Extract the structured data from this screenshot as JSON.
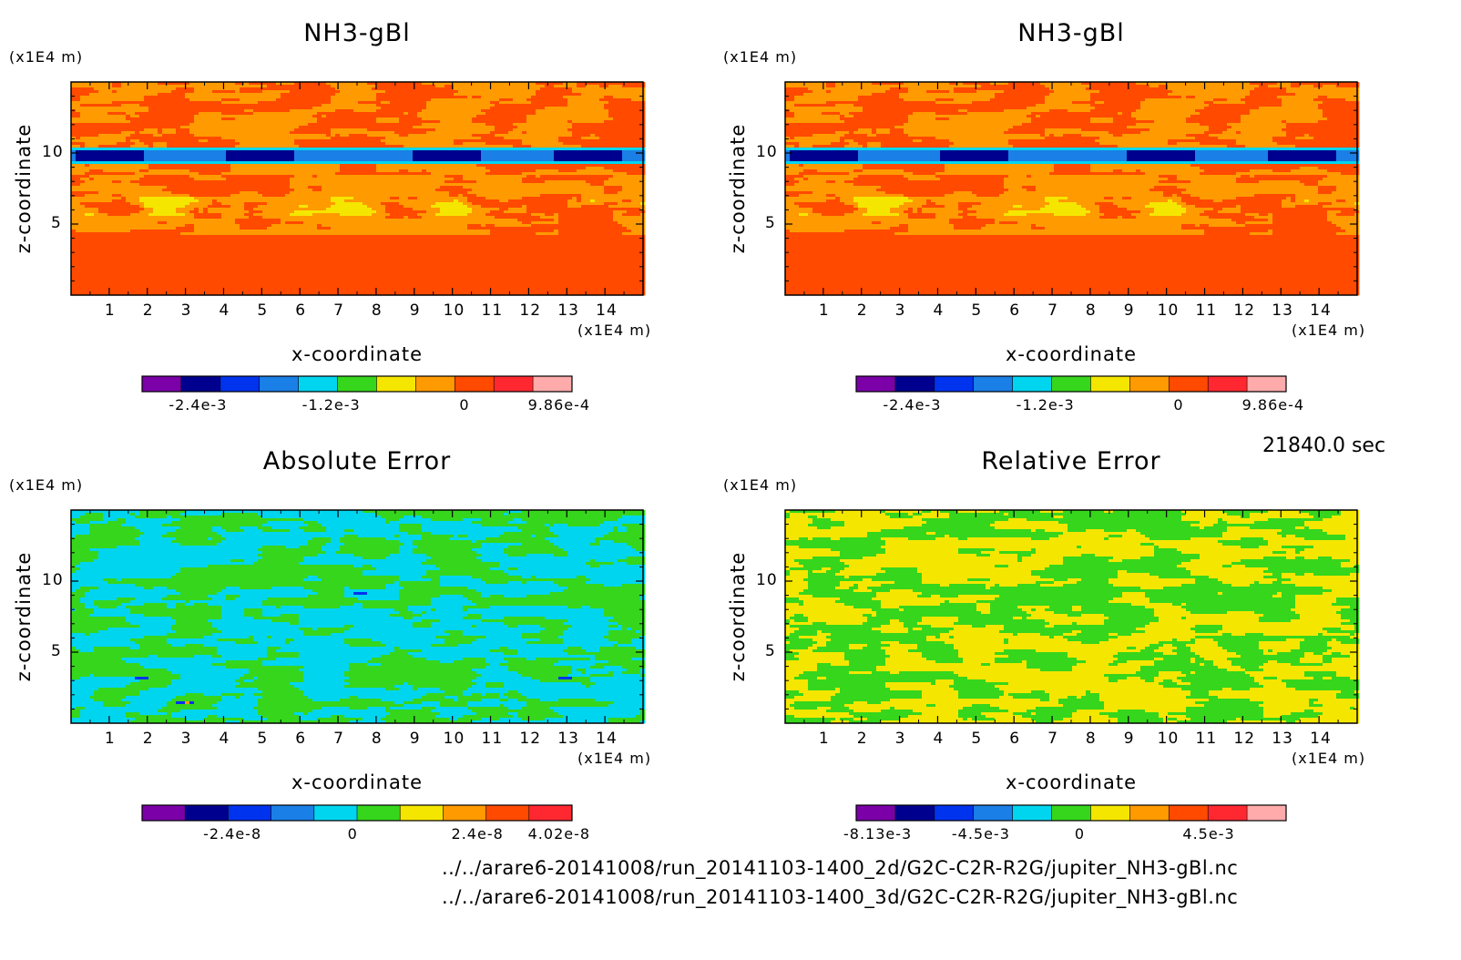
{
  "time_label": "21840.0 sec",
  "file_paths": [
    "../../arare6-20141008/run_20141103-1400_2d/G2C-C2R-R2G/jupiter_NH3-gBl.nc",
    "../../arare6-20141008/run_20141103-1400_3d/G2C-C2R-R2G/jupiter_NH3-gBl.nc"
  ],
  "chart_data": [
    {
      "type": "heatmap",
      "title": "NH3-gBl",
      "xlabel": "x-coordinate",
      "ylabel": "z-coordinate",
      "x_unit": "(x1E4 m)",
      "z_unit": "(x1E4 m)",
      "x_ticks": [
        "1",
        "2",
        "3",
        "4",
        "5",
        "6",
        "7",
        "8",
        "9",
        "10",
        "11",
        "12",
        "13",
        "14"
      ],
      "z_ticks": [
        "5",
        "10"
      ],
      "xlim": [
        0,
        15
      ],
      "zlim": [
        0,
        15
      ],
      "colorbar": {
        "colors": [
          "#7b00a8",
          "#00008e",
          "#0033ee",
          "#1a7fe6",
          "#00d5ef",
          "#36d61c",
          "#f5e600",
          "#ff9a00",
          "#ff4a00",
          "#ff2830",
          "#ffabab"
        ],
        "tick_labels": [
          "-2.4e-3",
          "-1.2e-3",
          "0",
          "9.86e-4"
        ]
      }
    },
    {
      "type": "heatmap",
      "title": "NH3-gBl",
      "xlabel": "x-coordinate",
      "ylabel": "z-coordinate",
      "x_unit": "(x1E4 m)",
      "z_unit": "(x1E4 m)",
      "x_ticks": [
        "1",
        "2",
        "3",
        "4",
        "5",
        "6",
        "7",
        "8",
        "9",
        "10",
        "11",
        "12",
        "13",
        "14"
      ],
      "z_ticks": [
        "5",
        "10"
      ],
      "xlim": [
        0,
        15
      ],
      "zlim": [
        0,
        15
      ],
      "colorbar": {
        "colors": [
          "#7b00a8",
          "#00008e",
          "#0033ee",
          "#1a7fe6",
          "#00d5ef",
          "#36d61c",
          "#f5e600",
          "#ff9a00",
          "#ff4a00",
          "#ff2830",
          "#ffabab"
        ],
        "tick_labels": [
          "-2.4e-3",
          "-1.2e-3",
          "0",
          "9.86e-4"
        ]
      }
    },
    {
      "type": "heatmap",
      "title": "Absolute Error",
      "xlabel": "x-coordinate",
      "ylabel": "z-coordinate",
      "x_unit": "(x1E4 m)",
      "z_unit": "(x1E4 m)",
      "x_ticks": [
        "1",
        "2",
        "3",
        "4",
        "5",
        "6",
        "7",
        "8",
        "9",
        "10",
        "11",
        "12",
        "13",
        "14"
      ],
      "z_ticks": [
        "5",
        "10"
      ],
      "xlim": [
        0,
        15
      ],
      "zlim": [
        0,
        15
      ],
      "colorbar": {
        "colors": [
          "#7b00a8",
          "#00008e",
          "#0033ee",
          "#1a7fe6",
          "#00d5ef",
          "#36d61c",
          "#f5e600",
          "#ff9a00",
          "#ff4a00",
          "#ff2830"
        ],
        "tick_labels": [
          "-2.4e-8",
          "0",
          "2.4e-8",
          "4.02e-8"
        ]
      }
    },
    {
      "type": "heatmap",
      "title": "Relative Error",
      "xlabel": "x-coordinate",
      "ylabel": "z-coordinate",
      "x_unit": "(x1E4 m)",
      "z_unit": "(x1E4 m)",
      "x_ticks": [
        "1",
        "2",
        "3",
        "4",
        "5",
        "6",
        "7",
        "8",
        "9",
        "10",
        "11",
        "12",
        "13",
        "14"
      ],
      "z_ticks": [
        "5",
        "10"
      ],
      "xlim": [
        0,
        15
      ],
      "zlim": [
        0,
        15
      ],
      "colorbar": {
        "colors": [
          "#7b00a8",
          "#00008e",
          "#0033ee",
          "#1a7fe6",
          "#00d5ef",
          "#36d61c",
          "#f5e600",
          "#ff9a00",
          "#ff4a00",
          "#ff2830",
          "#ffabab"
        ],
        "tick_labels": [
          "-8.13e-3",
          "-4.5e-3",
          "0",
          "4.5e-3"
        ]
      }
    }
  ]
}
